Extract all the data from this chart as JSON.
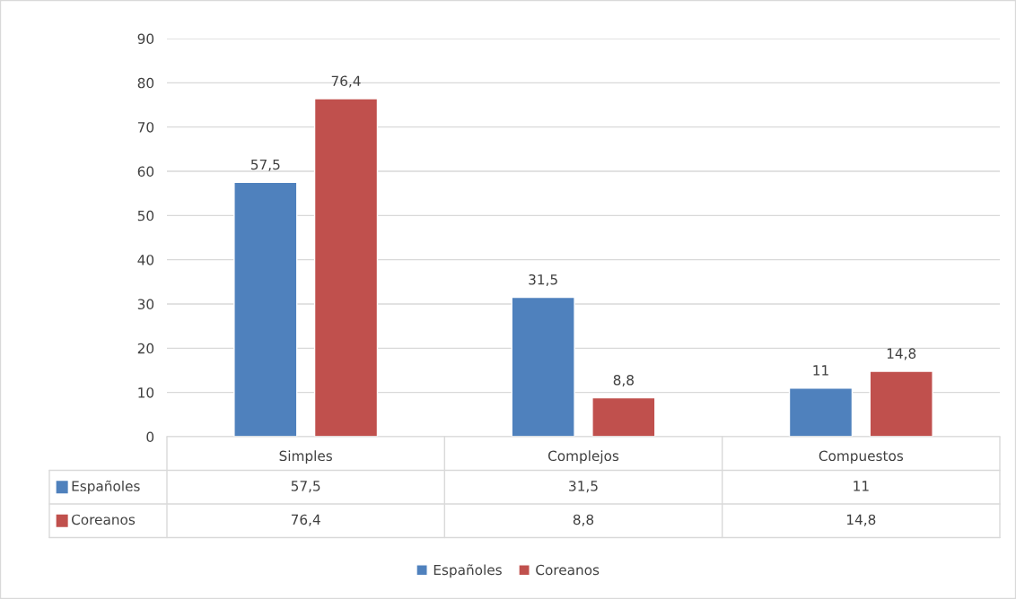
{
  "chart_data": {
    "type": "bar",
    "categories": [
      "Simples",
      "Complejos",
      "Compuestos"
    ],
    "series": [
      {
        "name": "Españoles",
        "color": "#4f81bd",
        "values": [
          57.5,
          31.5,
          11
        ],
        "value_labels": [
          "57,5",
          "31,5",
          "11"
        ]
      },
      {
        "name": "Coreanos",
        "color": "#c0504d",
        "values": [
          76.4,
          8.8,
          14.8
        ],
        "value_labels": [
          "76,4",
          "8,8",
          "14,8"
        ]
      }
    ],
    "ylim": [
      0,
      90
    ],
    "yticks": [
      0,
      10,
      20,
      30,
      40,
      50,
      60,
      70,
      80,
      90
    ],
    "grid": "y",
    "legend": "bottom"
  }
}
